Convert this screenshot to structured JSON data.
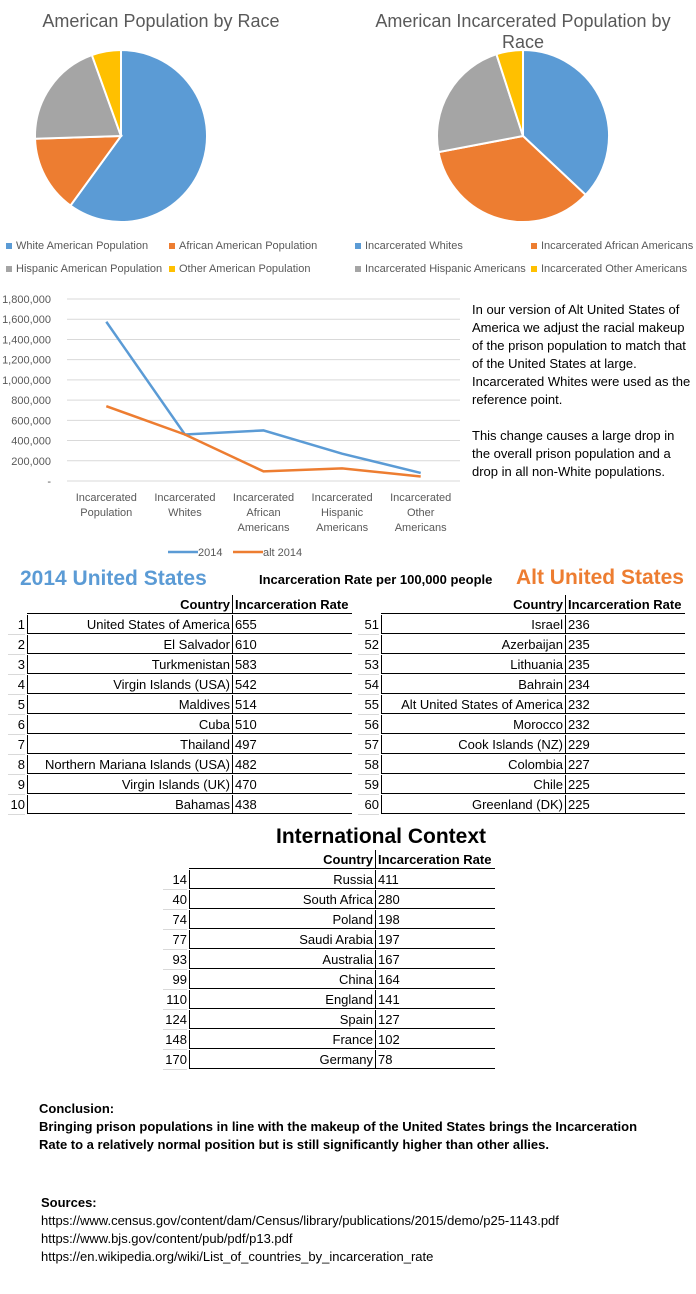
{
  "colors": {
    "blue": "#5B9BD5",
    "orange": "#ED7D31",
    "gray": "#A5A5A5",
    "yellow": "#FFC000"
  },
  "chart_data": [
    {
      "type": "pie",
      "title": "American Population by Race",
      "labels": [
        "White American Population",
        "African American Population",
        "Hispanic American Population",
        "Other American Population"
      ],
      "values": [
        60,
        14.5,
        20,
        5.5
      ],
      "legend": "bottom"
    },
    {
      "type": "pie",
      "title": "American Incarcerated Population by Race",
      "labels": [
        "Incarcerated Whites",
        "Incarcerated African Americans",
        "Incarcerated Hispanic Americans",
        "Incarcerated Other Americans"
      ],
      "values": [
        37,
        35,
        23,
        5
      ],
      "legend": "bottom"
    },
    {
      "type": "line",
      "categories": [
        "Incarcerated Population",
        "Incarcerated Whites",
        "Incarcerated African Americans",
        "Incarcerated Hispanic Americans",
        "Incarcerated Other Americans"
      ],
      "series": [
        {
          "name": "2014",
          "values": [
            1575000,
            460000,
            500000,
            270000,
            80000
          ]
        },
        {
          "name": "alt 2014",
          "values": [
            740000,
            460000,
            95000,
            125000,
            45000
          ]
        }
      ],
      "ylim": [
        0,
        1800000
      ],
      "yticks": [
        "-",
        "200,000",
        "400,000",
        "600,000",
        "800,000",
        "1,000,000",
        "1,200,000",
        "1,400,000",
        "1,600,000",
        "1,800,000"
      ],
      "grid": true,
      "legend": "bottom"
    }
  ],
  "note": {
    "p1": "In our version of Alt United States of America we adjust the racial makeup of the prison population to match that of the United States at large.",
    "p2": "Incarcerated Whites were used as the reference point.",
    "p3": "This change causes a large drop in the overall prison population and a drop in all non-White populations."
  },
  "headings": {
    "left": "2014 United States",
    "center": "Incarceration Rate per 100,000 people",
    "right": "Alt United States",
    "intl": "International Context"
  },
  "table_headers": {
    "country": "Country",
    "rate": "Incarceration Rate"
  },
  "tables": {
    "left": [
      [
        "1",
        "United States of America",
        "655"
      ],
      [
        "2",
        "El Salvador",
        "610"
      ],
      [
        "3",
        "Turkmenistan",
        "583"
      ],
      [
        "4",
        "Virgin Islands (USA)",
        "542"
      ],
      [
        "5",
        "Maldives",
        "514"
      ],
      [
        "6",
        "Cuba",
        "510"
      ],
      [
        "7",
        "Thailand",
        "497"
      ],
      [
        "8",
        "Northern Mariana Islands (USA)",
        "482"
      ],
      [
        "9",
        "Virgin Islands (UK)",
        "470"
      ],
      [
        "10",
        "Bahamas",
        "438"
      ]
    ],
    "right": [
      [
        "51",
        "Israel",
        "236"
      ],
      [
        "52",
        "Azerbaijan",
        "235"
      ],
      [
        "53",
        "Lithuania",
        "235"
      ],
      [
        "54",
        "Bahrain",
        "234"
      ],
      [
        "55",
        "Alt United States of America",
        "232"
      ],
      [
        "56",
        "Morocco",
        "232"
      ],
      [
        "57",
        "Cook Islands (NZ)",
        "229"
      ],
      [
        "58",
        "Colombia",
        "227"
      ],
      [
        "59",
        "Chile",
        "225"
      ],
      [
        "60",
        "Greenland (DK)",
        "225"
      ]
    ],
    "intl": [
      [
        "14",
        "Russia",
        "411"
      ],
      [
        "40",
        "South Africa",
        "280"
      ],
      [
        "74",
        "Poland",
        "198"
      ],
      [
        "77",
        "Saudi Arabia",
        "197"
      ],
      [
        "93",
        "Australia",
        "167"
      ],
      [
        "99",
        "China",
        "164"
      ],
      [
        "110",
        "England",
        "141"
      ],
      [
        "124",
        "Spain",
        "127"
      ],
      [
        "148",
        "France",
        "102"
      ],
      [
        "170",
        "Germany",
        "78"
      ]
    ]
  },
  "conclusion": {
    "label": "Conclusion:",
    "text": "Bringing prison populations in line with the makeup of the United States brings the Incarceration Rate to a relatively normal position but is still significantly higher than other allies."
  },
  "sources": {
    "label": "Sources:",
    "items": [
      "https://www.census.gov/content/dam/Census/library/publications/2015/demo/p25-1143.pdf",
      "https://www.bjs.gov/content/pub/pdf/p13.pdf",
      "https://en.wikipedia.org/wiki/List_of_countries_by_incarceration_rate"
    ]
  }
}
